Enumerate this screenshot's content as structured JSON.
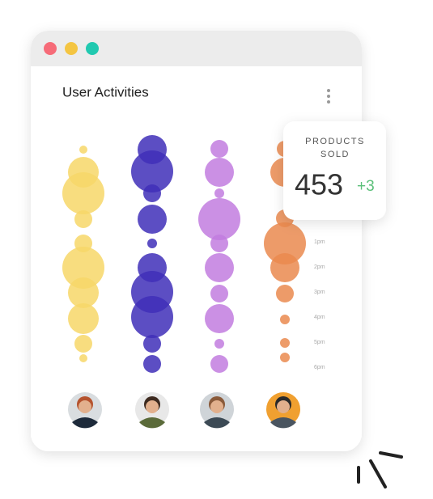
{
  "card": {
    "title": "User Activities"
  },
  "products": {
    "label_line1": "PRODUCTS",
    "label_line2": "SOLD",
    "value": "453",
    "delta": "+3"
  },
  "time_labels": [
    "1pm",
    "2pm",
    "3pm",
    "4pm",
    "5pm",
    "6pm"
  ]
}
